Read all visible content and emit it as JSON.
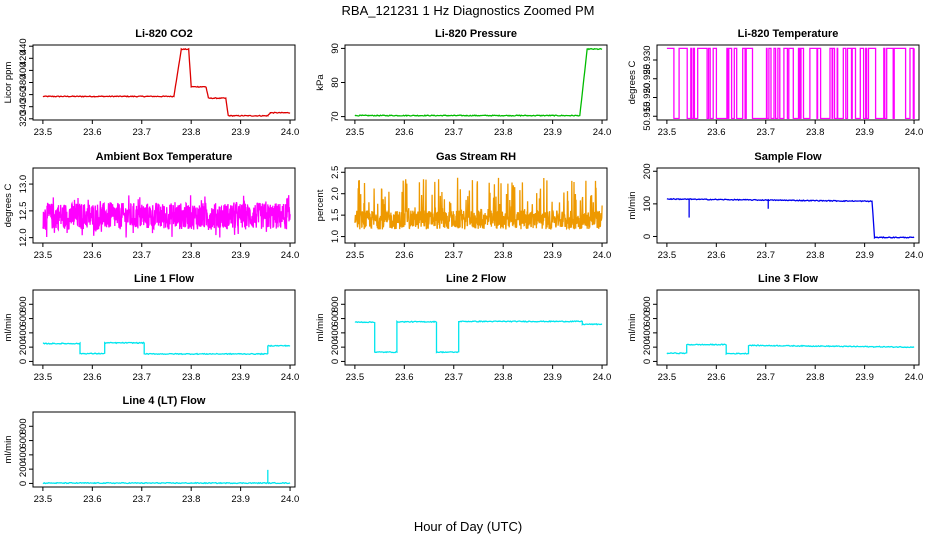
{
  "title": "RBA_121231  1 Hz Diagnostics Zoomed PM",
  "xlabel": "Hour of Day (UTC)",
  "chart_data": [
    {
      "type": "line",
      "title": "Li-820 CO2",
      "ylabel": "Licor ppm",
      "color": "#dd0000",
      "x_ticks": [
        "23.5",
        "23.6",
        "23.7",
        "23.8",
        "23.9",
        "24.0"
      ],
      "xlim": [
        23.48,
        24.01
      ],
      "y_ticks": [
        "320",
        "340",
        "360",
        "380",
        "400",
        "420",
        "440"
      ],
      "ylim": [
        318,
        442
      ],
      "segments": [
        {
          "x": [
            23.5,
            23.765
          ],
          "y": 357
        },
        {
          "x": [
            23.765,
            23.78
          ],
          "y": 357,
          "to": 435
        },
        {
          "x": [
            23.78,
            23.795
          ],
          "y": 435
        },
        {
          "x": [
            23.795,
            23.8
          ],
          "y": 435,
          "to": 373
        },
        {
          "x": [
            23.8,
            23.83
          ],
          "y": 373
        },
        {
          "x": [
            23.83,
            23.835
          ],
          "y": 373,
          "to": 354
        },
        {
          "x": [
            23.835,
            23.87
          ],
          "y": 354
        },
        {
          "x": [
            23.87,
            23.875
          ],
          "y": 354,
          "to": 325
        },
        {
          "x": [
            23.875,
            23.955
          ],
          "y": 325
        },
        {
          "x": [
            23.955,
            23.96
          ],
          "y": 325,
          "to": 330
        },
        {
          "x": [
            23.96,
            24.0
          ],
          "y": 330
        }
      ]
    },
    {
      "type": "line",
      "title": "Li-820 Pressure",
      "ylabel": "kPa",
      "color": "#00bb00",
      "x_ticks": [
        "23.5",
        "23.6",
        "23.7",
        "23.8",
        "23.9",
        "24.0"
      ],
      "xlim": [
        23.48,
        24.01
      ],
      "y_ticks": [
        "70",
        "80",
        "90"
      ],
      "ylim": [
        69,
        91
      ],
      "segments": [
        {
          "x": [
            23.5,
            23.955
          ],
          "y": 70.3
        },
        {
          "x": [
            23.955,
            23.97
          ],
          "y": 70.3,
          "to": 90
        },
        {
          "x": [
            23.97,
            24.0
          ],
          "y": 89.8
        }
      ]
    },
    {
      "type": "line",
      "title": "Li-820 Temperature",
      "ylabel": "degrees C",
      "color": "#ff00ff",
      "x_ticks": [
        "23.5",
        "23.6",
        "23.7",
        "23.8",
        "23.9",
        "24.0"
      ],
      "xlim": [
        23.48,
        24.01
      ],
      "y_ticks": [
        "50.915",
        "50.920",
        "50.925",
        "50.930"
      ],
      "ylim": [
        50.914,
        50.934
      ],
      "levels": [
        50.9144,
        50.9331
      ],
      "pattern": "binary"
    },
    {
      "type": "line",
      "title": "Ambient Box Temperature",
      "ylabel": "degrees C",
      "color": "#ff00ff",
      "x_ticks": [
        "23.5",
        "23.6",
        "23.7",
        "23.8",
        "23.9",
        "24.0"
      ],
      "xlim": [
        23.48,
        24.01
      ],
      "y_ticks": [
        "12.0",
        "12.5",
        "13.0"
      ],
      "ylim": [
        11.9,
        13.3
      ],
      "mean": 12.4,
      "spread": 0.5,
      "pattern": "noise"
    },
    {
      "type": "line",
      "title": "Gas Stream RH",
      "ylabel": "percent",
      "color": "#ee9900",
      "x_ticks": [
        "23.5",
        "23.6",
        "23.7",
        "23.8",
        "23.9",
        "24.0"
      ],
      "xlim": [
        23.48,
        24.01
      ],
      "y_ticks": [
        "1.0",
        "1.5",
        "2.0",
        "2.5"
      ],
      "ylim": [
        0.85,
        2.6
      ],
      "mean": 1.3,
      "spread": 1.1,
      "pattern": "spiky"
    },
    {
      "type": "line",
      "title": "Sample Flow",
      "ylabel": "ml/min",
      "color": "#0000ee",
      "x_ticks": [
        "23.5",
        "23.6",
        "23.7",
        "23.8",
        "23.9",
        "24.0"
      ],
      "xlim": [
        23.48,
        24.01
      ],
      "y_ticks": [
        "0",
        "100",
        "200"
      ],
      "ylim": [
        -20,
        210
      ],
      "segments": [
        {
          "x": [
            23.5,
            23.915
          ],
          "y": 115,
          "to": 108
        },
        {
          "x": [
            23.915,
            23.92
          ],
          "y": 108,
          "to": -3
        },
        {
          "x": [
            23.92,
            24.0
          ],
          "y": -3
        }
      ],
      "spikes": [
        {
          "x": 23.545,
          "y": 58
        },
        {
          "x": 23.705,
          "y": 85
        }
      ]
    },
    {
      "type": "line",
      "title": "Line 1 Flow",
      "ylabel": "ml/min",
      "color": "#00e5ee",
      "x_ticks": [
        "23.5",
        "23.6",
        "23.7",
        "23.8",
        "23.9",
        "24.0"
      ],
      "xlim": [
        23.48,
        24.01
      ],
      "y_ticks": [
        "0",
        "200",
        "400",
        "600",
        "800"
      ],
      "ylim": [
        -50,
        1000
      ],
      "segments": [
        {
          "x": [
            23.5,
            23.575
          ],
          "y": 250
        },
        {
          "x": [
            23.575,
            23.625
          ],
          "y": 110
        },
        {
          "x": [
            23.625,
            23.705
          ],
          "y": 260
        },
        {
          "x": [
            23.705,
            23.955
          ],
          "y": 105
        },
        {
          "x": [
            23.955,
            24.0
          ],
          "y": 220
        }
      ]
    },
    {
      "type": "line",
      "title": "Line 2 Flow",
      "ylabel": "ml/min",
      "color": "#00e5ee",
      "x_ticks": [
        "23.5",
        "23.6",
        "23.7",
        "23.8",
        "23.9",
        "24.0"
      ],
      "xlim": [
        23.48,
        24.01
      ],
      "y_ticks": [
        "0",
        "200",
        "400",
        "600",
        "800"
      ],
      "ylim": [
        -50,
        1000
      ],
      "segments": [
        {
          "x": [
            23.5,
            23.54
          ],
          "y": 550
        },
        {
          "x": [
            23.54,
            23.585
          ],
          "y": 130
        },
        {
          "x": [
            23.585,
            23.665
          ],
          "y": 555
        },
        {
          "x": [
            23.665,
            23.71
          ],
          "y": 130
        },
        {
          "x": [
            23.71,
            23.96
          ],
          "y": 560
        },
        {
          "x": [
            23.96,
            24.0
          ],
          "y": 520
        }
      ]
    },
    {
      "type": "line",
      "title": "Line 3 Flow",
      "ylabel": "ml/min",
      "color": "#00e5ee",
      "x_ticks": [
        "23.5",
        "23.6",
        "23.7",
        "23.8",
        "23.9",
        "24.0"
      ],
      "xlim": [
        23.48,
        24.01
      ],
      "y_ticks": [
        "0",
        "200",
        "400",
        "600",
        "800"
      ],
      "ylim": [
        -50,
        1000
      ],
      "segments": [
        {
          "x": [
            23.5,
            23.54
          ],
          "y": 115
        },
        {
          "x": [
            23.54,
            23.62
          ],
          "y": 235
        },
        {
          "x": [
            23.62,
            23.665
          ],
          "y": 110
        },
        {
          "x": [
            23.665,
            24.0
          ],
          "y": 225,
          "to": 200
        }
      ]
    },
    {
      "type": "line",
      "title": "Line 4 (LT) Flow",
      "ylabel": "ml/min",
      "color": "#00e5ee",
      "x_ticks": [
        "23.5",
        "23.6",
        "23.7",
        "23.8",
        "23.9",
        "24.0"
      ],
      "xlim": [
        23.48,
        24.01
      ],
      "y_ticks": [
        "0",
        "200",
        "400",
        "600",
        "800"
      ],
      "ylim": [
        -50,
        1000
      ],
      "segments": [
        {
          "x": [
            23.5,
            24.0
          ],
          "y": 5
        }
      ],
      "spikes": [
        {
          "x": 23.955,
          "y": 190
        }
      ]
    }
  ]
}
